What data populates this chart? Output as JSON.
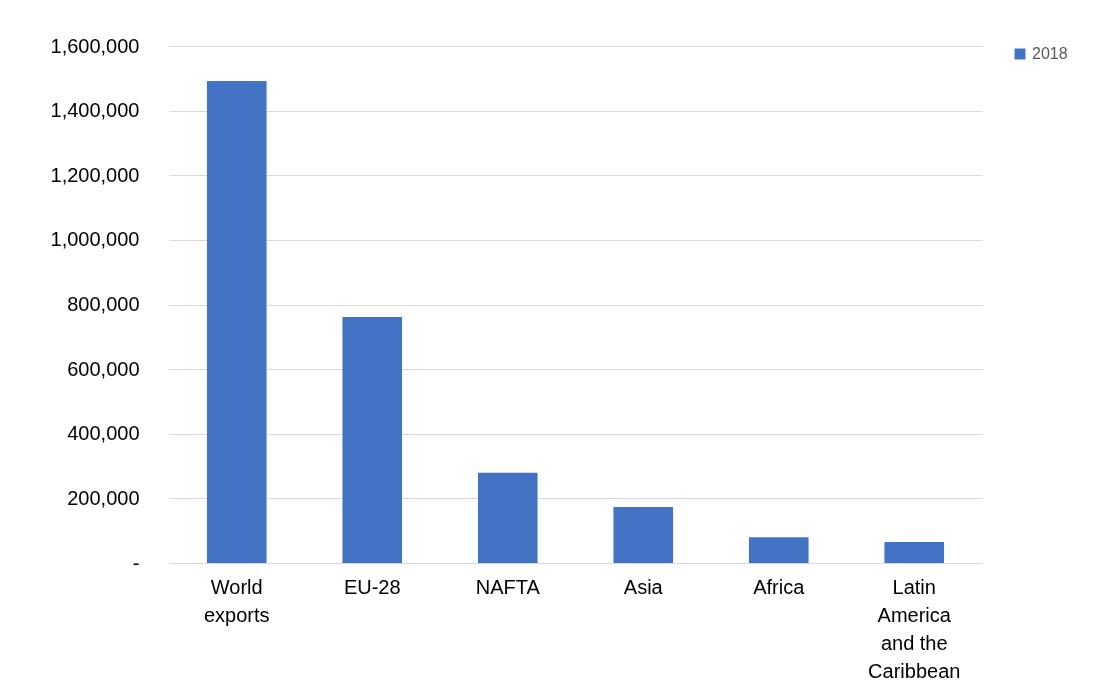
{
  "chart_data": {
    "type": "bar",
    "categories": [
      "World exports",
      "EU-28",
      "NAFTA",
      "Asia",
      "Africa",
      "Latin America and the Caribbean"
    ],
    "series": [
      {
        "name": "2018",
        "color": "#4472c4",
        "values": [
          1492000,
          761000,
          279000,
          173000,
          80000,
          65000
        ]
      }
    ],
    "ylim": [
      0,
      1600000
    ],
    "yticks": [
      {
        "value": 0,
        "label": "-"
      },
      {
        "value": 200000,
        "label": "200,000"
      },
      {
        "value": 400000,
        "label": "400,000"
      },
      {
        "value": 600000,
        "label": "600,000"
      },
      {
        "value": 800000,
        "label": "800,000"
      },
      {
        "value": 1000000,
        "label": "1,000,000"
      },
      {
        "value": 1200000,
        "label": "1,200,000"
      },
      {
        "value": 1400000,
        "label": "1,400,000"
      },
      {
        "value": 1600000,
        "label": "1,600,000"
      }
    ],
    "grid": "y",
    "legend": "right"
  }
}
